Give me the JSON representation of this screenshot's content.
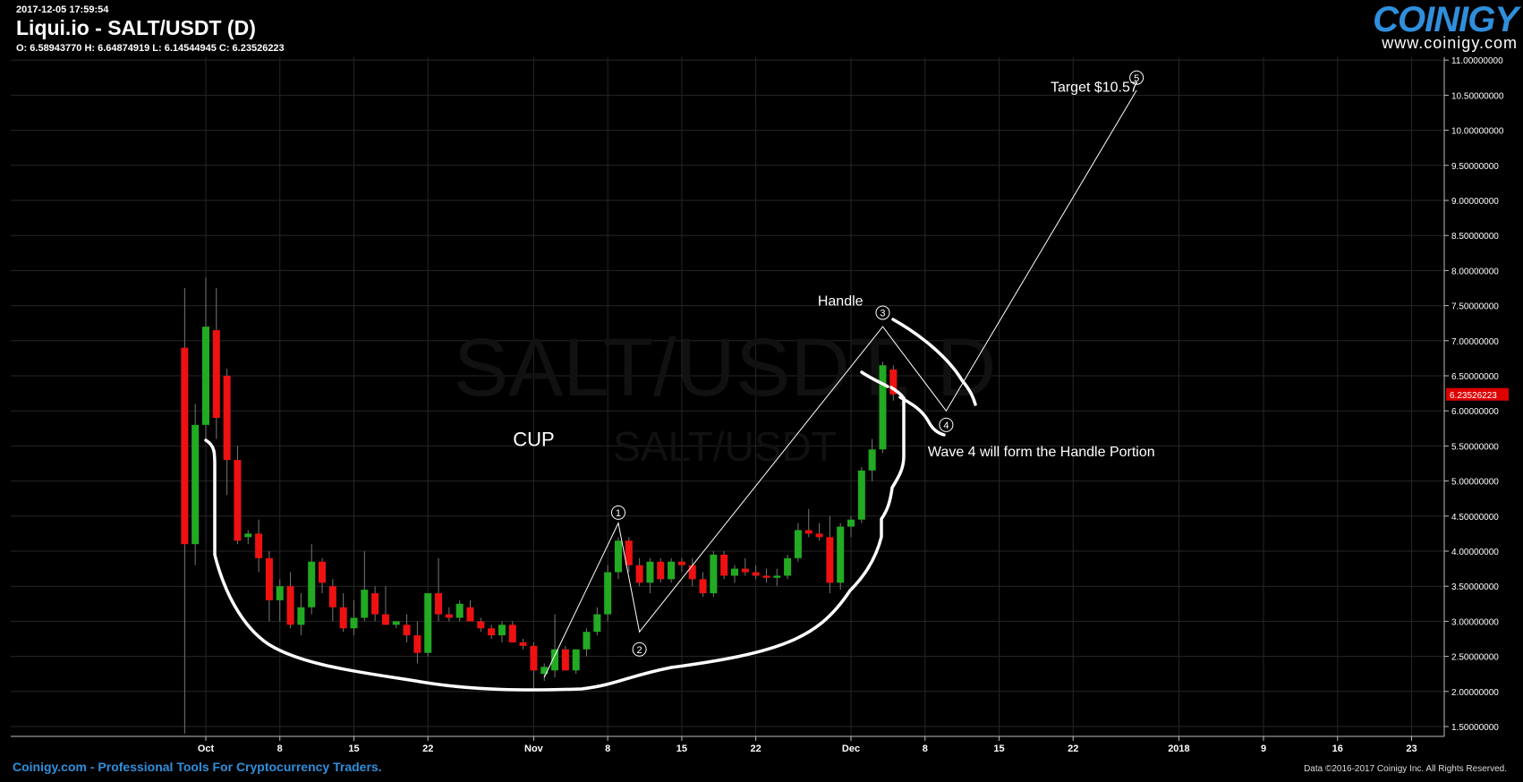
{
  "header": {
    "timestamp": "2017-12-05 17:59:54",
    "title": "Liqui.io - SALT/USDT (D)",
    "ohlc": "O: 6.58943770 H: 6.64874919 L: 6.14544945 C: 6.23526223"
  },
  "logo": {
    "brand": "COINIGY",
    "url": "www.coinigy.com"
  },
  "footer": {
    "left": "Coinigy.com - Professional Tools For Cryptocurrency Traders.",
    "right": "Data ©2016-2017 Coinigy Inc. All Rights Reserved."
  },
  "colors": {
    "up": "#22aa22",
    "down": "#ee1111",
    "background": "#000000",
    "grid": "#262626",
    "price_tag": "#dd0000",
    "link": "#2f8fdc"
  },
  "chart_data": {
    "type": "candlestick",
    "title": "Liqui.io - SALT/USDT (D)",
    "watermark": [
      "SALT/USDT, D",
      "SALT/USDT"
    ],
    "x_ticks": [
      "Oct",
      "8",
      "15",
      "22",
      "Nov",
      "8",
      "15",
      "22",
      "Dec",
      "8",
      "15",
      "22",
      "2018",
      "9",
      "16",
      "23"
    ],
    "y_ticks": [
      "1.50000000",
      "2.00000000",
      "2.50000000",
      "3.00000000",
      "3.50000000",
      "4.00000000",
      "4.50000000",
      "5.00000000",
      "5.50000000",
      "6.00000000",
      "6.50000000",
      "7.00000000",
      "7.50000000",
      "8.00000000",
      "8.50000000",
      "9.00000000",
      "9.50000000",
      "10.00000000",
      "10.50000000",
      "11.00000000"
    ],
    "ylim": [
      1.35,
      11.05
    ],
    "grid": true,
    "last_price": "6.23526223",
    "candles": [
      {
        "date": "2017-09-29",
        "o": 6.9,
        "h": 7.75,
        "l": 1.4,
        "c": 4.1
      },
      {
        "date": "2017-09-30",
        "o": 4.1,
        "h": 6.1,
        "l": 3.8,
        "c": 5.8
      },
      {
        "date": "2017-10-01",
        "o": 5.8,
        "h": 7.9,
        "l": 5.6,
        "c": 7.2
      },
      {
        "date": "2017-10-02",
        "o": 7.15,
        "h": 7.75,
        "l": 5.6,
        "c": 5.9
      },
      {
        "date": "2017-10-03",
        "o": 6.5,
        "h": 6.6,
        "l": 4.8,
        "c": 5.3
      },
      {
        "date": "2017-10-04",
        "o": 5.3,
        "h": 5.5,
        "l": 4.1,
        "c": 4.15
      },
      {
        "date": "2017-10-05",
        "o": 4.2,
        "h": 4.3,
        "l": 4.1,
        "c": 4.25
      },
      {
        "date": "2017-10-06",
        "o": 4.25,
        "h": 4.45,
        "l": 3.7,
        "c": 3.9
      },
      {
        "date": "2017-10-07",
        "o": 3.9,
        "h": 4.0,
        "l": 3.0,
        "c": 3.3
      },
      {
        "date": "2017-10-08",
        "o": 3.3,
        "h": 3.6,
        "l": 3.0,
        "c": 3.5
      },
      {
        "date": "2017-10-09",
        "o": 3.5,
        "h": 3.7,
        "l": 2.9,
        "c": 2.95
      },
      {
        "date": "2017-10-10",
        "o": 2.95,
        "h": 3.4,
        "l": 2.8,
        "c": 3.2
      },
      {
        "date": "2017-10-11",
        "o": 3.2,
        "h": 4.1,
        "l": 3.1,
        "c": 3.85
      },
      {
        "date": "2017-10-12",
        "o": 3.85,
        "h": 3.9,
        "l": 3.4,
        "c": 3.55
      },
      {
        "date": "2017-10-13",
        "o": 3.5,
        "h": 3.6,
        "l": 3.0,
        "c": 3.2
      },
      {
        "date": "2017-10-14",
        "o": 3.2,
        "h": 3.4,
        "l": 2.85,
        "c": 2.9
      },
      {
        "date": "2017-10-15",
        "o": 2.9,
        "h": 3.3,
        "l": 2.8,
        "c": 3.05
      },
      {
        "date": "2017-10-16",
        "o": 3.05,
        "h": 4.0,
        "l": 3.0,
        "c": 3.45
      },
      {
        "date": "2017-10-17",
        "o": 3.4,
        "h": 3.5,
        "l": 3.0,
        "c": 3.1
      },
      {
        "date": "2017-10-18",
        "o": 3.1,
        "h": 3.5,
        "l": 2.95,
        "c": 2.95
      },
      {
        "date": "2017-10-19",
        "o": 2.95,
        "h": 3.0,
        "l": 2.9,
        "c": 3.0
      },
      {
        "date": "2017-10-20",
        "o": 2.95,
        "h": 3.1,
        "l": 2.7,
        "c": 2.8
      },
      {
        "date": "2017-10-21",
        "o": 2.8,
        "h": 3.0,
        "l": 2.4,
        "c": 2.55
      },
      {
        "date": "2017-10-22",
        "o": 2.55,
        "h": 3.4,
        "l": 2.5,
        "c": 3.4
      },
      {
        "date": "2017-10-23",
        "o": 3.4,
        "h": 3.9,
        "l": 3.0,
        "c": 3.1
      },
      {
        "date": "2017-10-24",
        "o": 3.1,
        "h": 3.2,
        "l": 3.0,
        "c": 3.05
      },
      {
        "date": "2017-10-25",
        "o": 3.05,
        "h": 3.3,
        "l": 3.0,
        "c": 3.25
      },
      {
        "date": "2017-10-26",
        "o": 3.2,
        "h": 3.3,
        "l": 3.0,
        "c": 3.0
      },
      {
        "date": "2017-10-27",
        "o": 3.0,
        "h": 3.05,
        "l": 2.85,
        "c": 2.9
      },
      {
        "date": "2017-10-28",
        "o": 2.9,
        "h": 2.95,
        "l": 2.75,
        "c": 2.8
      },
      {
        "date": "2017-10-29",
        "o": 2.8,
        "h": 3.0,
        "l": 2.7,
        "c": 2.95
      },
      {
        "date": "2017-10-30",
        "o": 2.95,
        "h": 3.0,
        "l": 2.7,
        "c": 2.7
      },
      {
        "date": "2017-10-31",
        "o": 2.7,
        "h": 2.75,
        "l": 2.6,
        "c": 2.65
      },
      {
        "date": "2017-11-01",
        "o": 2.65,
        "h": 2.7,
        "l": 2.05,
        "c": 2.3
      },
      {
        "date": "2017-11-02",
        "o": 2.25,
        "h": 2.4,
        "l": 2.15,
        "c": 2.35
      },
      {
        "date": "2017-11-03",
        "o": 2.3,
        "h": 3.1,
        "l": 2.2,
        "c": 2.6
      },
      {
        "date": "2017-11-04",
        "o": 2.6,
        "h": 2.65,
        "l": 2.3,
        "c": 2.3
      },
      {
        "date": "2017-11-05",
        "o": 2.3,
        "h": 2.6,
        "l": 2.25,
        "c": 2.6
      },
      {
        "date": "2017-11-06",
        "o": 2.6,
        "h": 2.9,
        "l": 2.5,
        "c": 2.85
      },
      {
        "date": "2017-11-07",
        "o": 2.85,
        "h": 3.2,
        "l": 2.8,
        "c": 3.1
      },
      {
        "date": "2017-11-08",
        "o": 3.1,
        "h": 3.8,
        "l": 3.0,
        "c": 3.7
      },
      {
        "date": "2017-11-09",
        "o": 3.7,
        "h": 4.2,
        "l": 3.6,
        "c": 4.15
      },
      {
        "date": "2017-11-10",
        "o": 4.15,
        "h": 4.2,
        "l": 3.7,
        "c": 3.8
      },
      {
        "date": "2017-11-11",
        "o": 3.8,
        "h": 3.9,
        "l": 3.5,
        "c": 3.55
      },
      {
        "date": "2017-11-12",
        "o": 3.55,
        "h": 3.9,
        "l": 3.4,
        "c": 3.85
      },
      {
        "date": "2017-11-13",
        "o": 3.85,
        "h": 3.9,
        "l": 3.55,
        "c": 3.6
      },
      {
        "date": "2017-11-14",
        "o": 3.6,
        "h": 3.9,
        "l": 3.55,
        "c": 3.85
      },
      {
        "date": "2017-11-15",
        "o": 3.85,
        "h": 3.9,
        "l": 3.7,
        "c": 3.8
      },
      {
        "date": "2017-11-16",
        "o": 3.8,
        "h": 3.9,
        "l": 3.5,
        "c": 3.6
      },
      {
        "date": "2017-11-17",
        "o": 3.6,
        "h": 3.7,
        "l": 3.35,
        "c": 3.4
      },
      {
        "date": "2017-11-18",
        "o": 3.4,
        "h": 4.0,
        "l": 3.35,
        "c": 3.95
      },
      {
        "date": "2017-11-19",
        "o": 3.95,
        "h": 4.0,
        "l": 3.6,
        "c": 3.65
      },
      {
        "date": "2017-11-20",
        "o": 3.65,
        "h": 3.8,
        "l": 3.55,
        "c": 3.75
      },
      {
        "date": "2017-11-21",
        "o": 3.75,
        "h": 3.9,
        "l": 3.65,
        "c": 3.7
      },
      {
        "date": "2017-11-22",
        "o": 3.7,
        "h": 3.8,
        "l": 3.6,
        "c": 3.65
      },
      {
        "date": "2017-11-23",
        "o": 3.65,
        "h": 3.75,
        "l": 3.55,
        "c": 3.62
      },
      {
        "date": "2017-11-24",
        "o": 3.62,
        "h": 3.75,
        "l": 3.5,
        "c": 3.65
      },
      {
        "date": "2017-11-25",
        "o": 3.65,
        "h": 3.95,
        "l": 3.6,
        "c": 3.9
      },
      {
        "date": "2017-11-26",
        "o": 3.9,
        "h": 4.4,
        "l": 3.85,
        "c": 4.3
      },
      {
        "date": "2017-11-27",
        "o": 4.3,
        "h": 4.6,
        "l": 4.2,
        "c": 4.25
      },
      {
        "date": "2017-11-28",
        "o": 4.25,
        "h": 4.4,
        "l": 4.15,
        "c": 4.2
      },
      {
        "date": "2017-11-29",
        "o": 4.2,
        "h": 4.5,
        "l": 3.4,
        "c": 3.55
      },
      {
        "date": "2017-11-30",
        "o": 3.55,
        "h": 4.4,
        "l": 3.45,
        "c": 4.35
      },
      {
        "date": "2017-12-01",
        "o": 4.35,
        "h": 4.5,
        "l": 4.2,
        "c": 4.45
      },
      {
        "date": "2017-12-02",
        "o": 4.45,
        "h": 5.2,
        "l": 4.4,
        "c": 5.15
      },
      {
        "date": "2017-12-03",
        "o": 5.15,
        "h": 5.6,
        "l": 5.0,
        "c": 5.45
      },
      {
        "date": "2017-12-04",
        "o": 5.45,
        "h": 6.7,
        "l": 5.4,
        "c": 6.65
      },
      {
        "date": "2017-12-05",
        "o": 6.5894377,
        "h": 6.64874919,
        "l": 6.14544945,
        "c": 6.23526223
      }
    ],
    "annotations": {
      "texts": [
        {
          "text": "CUP",
          "date": "2017-11-01",
          "price": 5.5
        },
        {
          "text": "Handle",
          "date": "2017-11-30",
          "price": 7.5
        },
        {
          "text": "Target $10.57",
          "date": "2017-12-24",
          "price": 10.55
        },
        {
          "text": "Wave 4 will form the Handle Portion",
          "date": "2017-12-19",
          "price": 5.35
        }
      ],
      "wave_labels": [
        {
          "label": "1",
          "date": "2017-11-09",
          "price": 4.55
        },
        {
          "label": "2",
          "date": "2017-11-11",
          "price": 2.6
        },
        {
          "label": "3",
          "date": "2017-12-04",
          "price": 7.4
        },
        {
          "label": "4",
          "date": "2017-12-10",
          "price": 5.8
        },
        {
          "label": "5",
          "date": "2017-12-28",
          "price": 10.75
        }
      ],
      "wave_lines": [
        {
          "date": "2017-11-02",
          "price": 2.2
        },
        {
          "date": "2017-11-09",
          "price": 4.4
        },
        {
          "date": "2017-11-11",
          "price": 2.85
        },
        {
          "date": "2017-12-04",
          "price": 7.2
        },
        {
          "date": "2017-12-10",
          "price": 6.0
        },
        {
          "date": "2017-12-28",
          "price": 10.57
        }
      ]
    }
  }
}
